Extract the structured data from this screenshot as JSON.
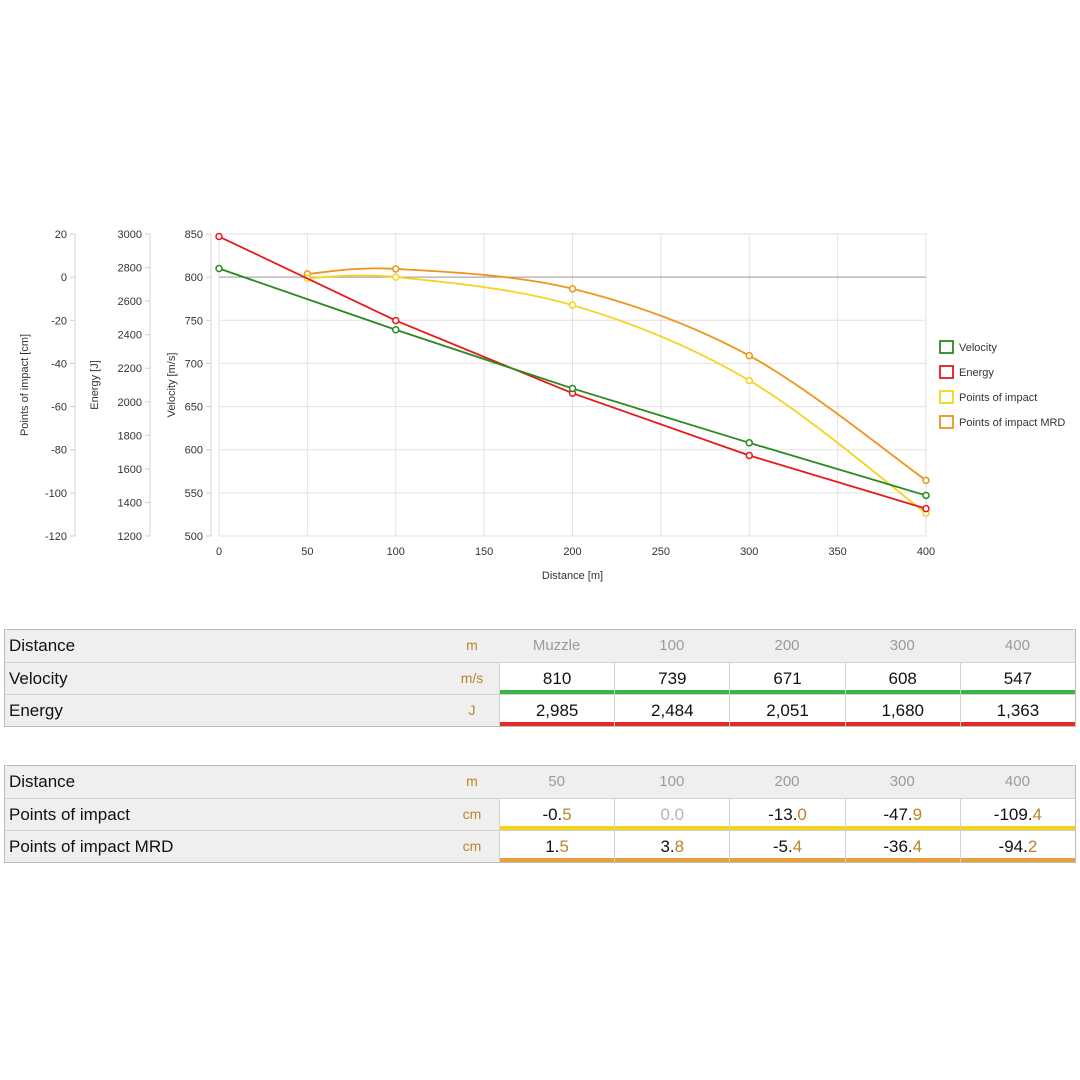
{
  "chart_data": {
    "type": "line",
    "x_axis": {
      "label": "Distance [m]",
      "min": 0,
      "max": 400,
      "ticks": [
        0,
        50,
        100,
        150,
        200,
        250,
        300,
        350,
        400
      ]
    },
    "y_axes": [
      {
        "id": "poi",
        "label": "Points of impact [cm]",
        "min": -120,
        "max": 20,
        "ticks": [
          20,
          0,
          -20,
          -40,
          -60,
          -80,
          -100,
          -120
        ]
      },
      {
        "id": "energy",
        "label": "Energy [J]",
        "min": 1200,
        "max": 3000,
        "ticks": [
          3000,
          2800,
          2600,
          2400,
          2200,
          2000,
          1800,
          1600,
          1400,
          1200
        ]
      },
      {
        "id": "velocity",
        "label": "Velocity [m/s]",
        "min": 500,
        "max": 850,
        "ticks": [
          850,
          800,
          750,
          700,
          650,
          600,
          550,
          500
        ]
      }
    ],
    "grid": true,
    "legend_position": "right",
    "series": [
      {
        "name": "Velocity",
        "axis": "velocity",
        "color": "#2a8a1e",
        "smooth": false,
        "x": [
          0,
          100,
          200,
          300,
          400
        ],
        "y": [
          810,
          739,
          671,
          608,
          547
        ]
      },
      {
        "name": "Energy",
        "axis": "energy",
        "color": "#e8191b",
        "smooth": false,
        "x": [
          0,
          100,
          200,
          300,
          400
        ],
        "y": [
          2985,
          2484,
          2051,
          1680,
          1363
        ]
      },
      {
        "name": "Points of impact",
        "axis": "poi",
        "color": "#f4d41c",
        "smooth": true,
        "x": [
          50,
          100,
          200,
          300,
          400
        ],
        "y": [
          -0.5,
          0.0,
          -13.0,
          -47.9,
          -109.4
        ]
      },
      {
        "name": "Points of impact MRD",
        "axis": "poi",
        "color": "#f0941a",
        "smooth": true,
        "x": [
          50,
          100,
          200,
          300,
          400
        ],
        "y": [
          1.5,
          3.8,
          -5.4,
          -36.4,
          -94.2
        ]
      }
    ]
  },
  "table1": {
    "header": {
      "label": "Distance",
      "unit": "m",
      "cols": [
        "Muzzle",
        "100",
        "200",
        "300",
        "400"
      ]
    },
    "rows": [
      {
        "label": "Velocity",
        "unit": "m/s",
        "bar": "#3bb54a",
        "cells": [
          {
            "int": "810",
            "frac": ""
          },
          {
            "int": "739",
            "frac": ""
          },
          {
            "int": "671",
            "frac": ""
          },
          {
            "int": "608",
            "frac": ""
          },
          {
            "int": "547",
            "frac": ""
          }
        ]
      },
      {
        "label": "Energy",
        "unit": "J",
        "bar": "#e52a2a",
        "cells": [
          {
            "int": "2,985",
            "frac": ""
          },
          {
            "int": "2,484",
            "frac": ""
          },
          {
            "int": "2,051",
            "frac": ""
          },
          {
            "int": "1,680",
            "frac": ""
          },
          {
            "int": "1,363",
            "frac": ""
          }
        ]
      }
    ]
  },
  "table2": {
    "header": {
      "label": "Distance",
      "unit": "m",
      "cols": [
        "50",
        "100",
        "200",
        "300",
        "400"
      ]
    },
    "rows": [
      {
        "label": "Points of impact",
        "unit": "cm",
        "bar": "#f4d41c",
        "cells": [
          {
            "int": "-0.",
            "frac": "5"
          },
          {
            "int": "0.",
            "frac": "0",
            "muted": true
          },
          {
            "int": "-13.",
            "frac": "0"
          },
          {
            "int": "-47.",
            "frac": "9"
          },
          {
            "int": "-109.",
            "frac": "4"
          }
        ]
      },
      {
        "label": "Points of impact MRD",
        "unit": "cm",
        "bar": "#e8a23a",
        "cells": [
          {
            "int": "1.",
            "frac": "5"
          },
          {
            "int": "3.",
            "frac": "8"
          },
          {
            "int": "-5.",
            "frac": "4"
          },
          {
            "int": "-36.",
            "frac": "4"
          },
          {
            "int": "-94.",
            "frac": "2"
          }
        ]
      }
    ]
  }
}
